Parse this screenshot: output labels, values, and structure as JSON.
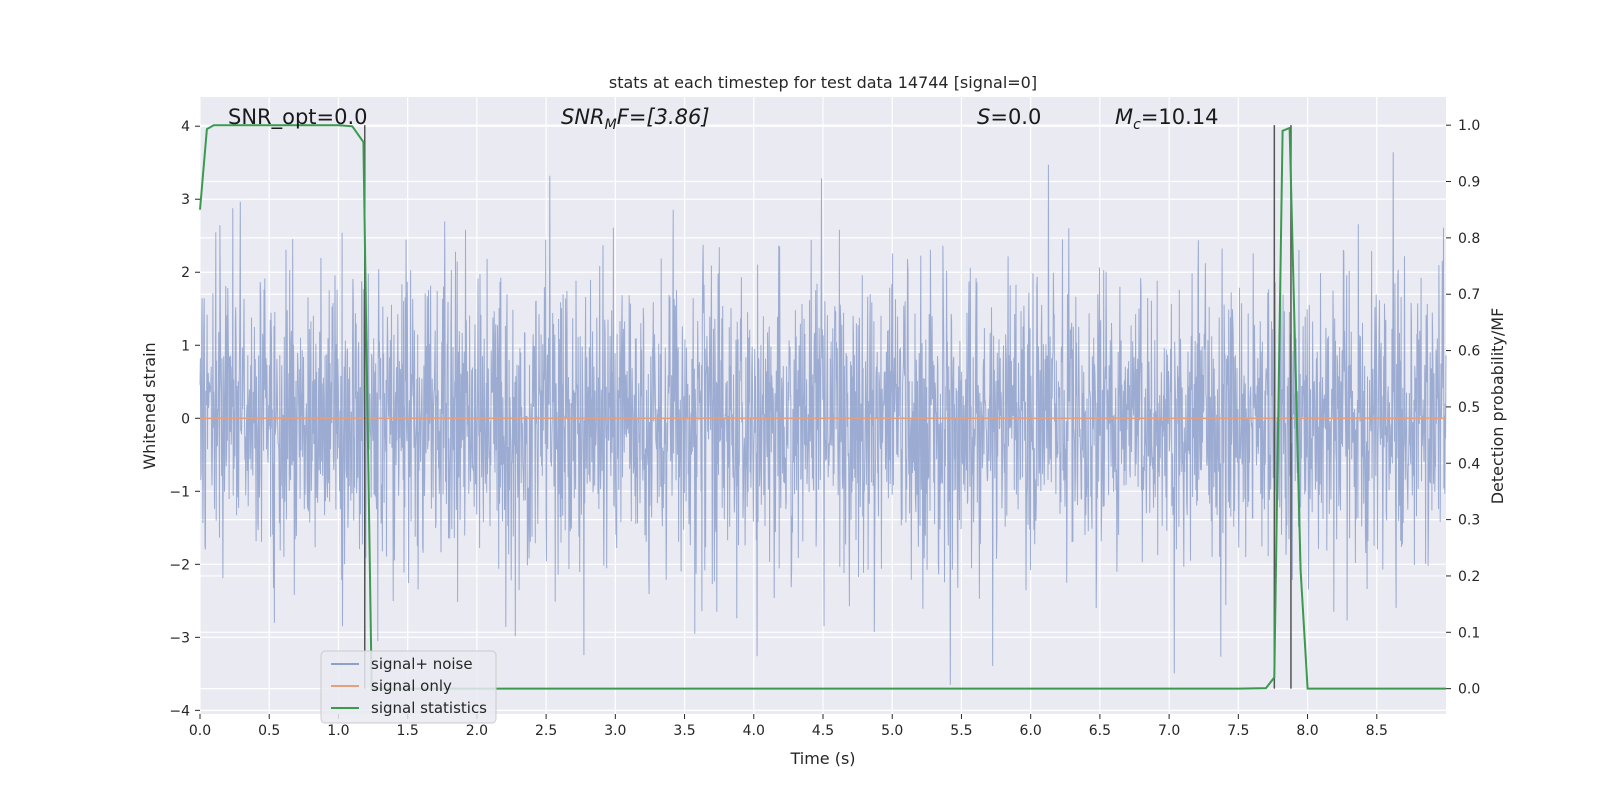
{
  "chart_data": {
    "type": "line",
    "title": "stats at each timestep for test data 14744 [signal=0]",
    "xlabel": "Time (s)",
    "ylabel": "Whitened strain",
    "y2label": "Detection probability/MF",
    "xlim": [
      0,
      9
    ],
    "ylim": [
      -4.05,
      4.4
    ],
    "y2lim": [
      -0.045,
      1.05
    ],
    "xticks": [
      "0.0",
      "0.5",
      "1.0",
      "1.5",
      "2.0",
      "2.5",
      "3.0",
      "3.5",
      "4.0",
      "4.5",
      "5.0",
      "5.5",
      "6.0",
      "6.5",
      "7.0",
      "7.5",
      "8.0",
      "8.5"
    ],
    "yticks": [
      "−4",
      "−3",
      "−2",
      "−1",
      "0",
      "1",
      "2",
      "3",
      "4"
    ],
    "y2ticks": [
      "0.0",
      "0.1",
      "0.2",
      "0.3",
      "0.4",
      "0.5",
      "0.6",
      "0.7",
      "0.8",
      "0.9",
      "1.0"
    ],
    "grid": true,
    "legend_position": "lower-left",
    "annotations": {
      "snr_opt": "SNR_opt=0.0",
      "snr_mf_sym": "SNR",
      "snr_mf_sub": "M",
      "snr_mf_rest": "F=[3.86]",
      "s_sym": "S",
      "s_rest": "=0.0",
      "mc_sym": "M",
      "mc_sub": "c",
      "mc_rest": "=10.14"
    },
    "series": [
      {
        "name": "signal+ noise",
        "color": "#8da0cb",
        "description_values": "whitened noise, amplitude within about -3.6 to 4.0"
      },
      {
        "name": "signal only",
        "color": "#e69f7c",
        "values_y": [
          0,
          0
        ]
      },
      {
        "name": "signal statistics",
        "color": "#3a9a4e",
        "x": [
          0,
          0.05,
          0.1,
          0.2,
          0.5,
          0.8,
          1.0,
          1.1,
          1.18,
          1.24,
          1.3,
          2.0,
          3.0,
          4.0,
          5.0,
          6.0,
          7.0,
          7.5,
          7.7,
          7.76,
          7.82,
          7.87,
          7.95,
          8.0,
          8.5,
          9.0
        ],
        "y": [
          0.85,
          0.993,
          1.0,
          1.0,
          1.0,
          1.0,
          1.0,
          0.998,
          0.97,
          0.0,
          0.0,
          0.0,
          0.0,
          0.0,
          0.0,
          0.0,
          0.0,
          0.0,
          0.001,
          0.02,
          0.99,
          0.995,
          0.21,
          0.0,
          0.0,
          0.0
        ]
      }
    ],
    "vlines_x": [
      1.19,
      7.76,
      7.88
    ]
  }
}
